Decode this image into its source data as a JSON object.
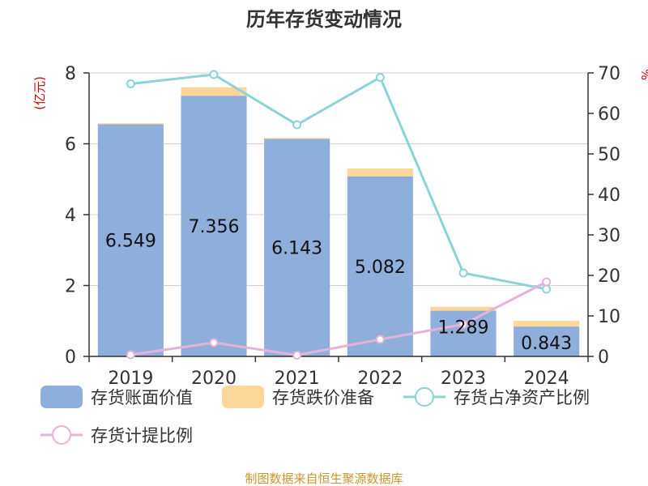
{
  "chart_data": {
    "type": "bar",
    "title": "历年存货变动情况",
    "categories": [
      "2019",
      "2020",
      "2021",
      "2022",
      "2023",
      "2024"
    ],
    "left_axis": {
      "unit": "(亿元)",
      "ylim": [
        0,
        8
      ],
      "ticks": [
        "0",
        "2",
        "4",
        "6",
        "8"
      ]
    },
    "right_axis": {
      "unit": "%",
      "ylim": [
        0,
        70
      ],
      "ticks": [
        "0",
        "10",
        "20",
        "30",
        "40",
        "50",
        "60",
        "70"
      ]
    },
    "series": [
      {
        "name": "存货账面价值",
        "kind": "bar",
        "axis": "left",
        "stack": "inv",
        "color": "#8eaedb",
        "values": [
          6.549,
          7.356,
          6.143,
          5.082,
          1.289,
          0.843
        ],
        "labels": [
          "6.549",
          "7.356",
          "6.143",
          "5.082",
          "1.289",
          "0.843"
        ]
      },
      {
        "name": "存货跌价准备",
        "kind": "bar",
        "axis": "left",
        "stack": "inv",
        "color": "#fdd79a",
        "values": [
          0.03,
          0.24,
          0.02,
          0.22,
          0.11,
          0.16
        ]
      },
      {
        "name": "存货占净资产比例",
        "kind": "line",
        "axis": "right",
        "color": "#8ad4d6",
        "values": [
          67.3,
          69.6,
          57.2,
          68.9,
          20.6,
          16.6
        ]
      },
      {
        "name": "存货计提比例",
        "kind": "line",
        "axis": "right",
        "color": "#e6b2d8",
        "values": [
          0.4,
          3.4,
          0.3,
          4.2,
          7.9,
          18.4
        ]
      }
    ],
    "grid": true,
    "legend_position": "bottom"
  },
  "source": "制图数据来自恒生聚源数据库"
}
